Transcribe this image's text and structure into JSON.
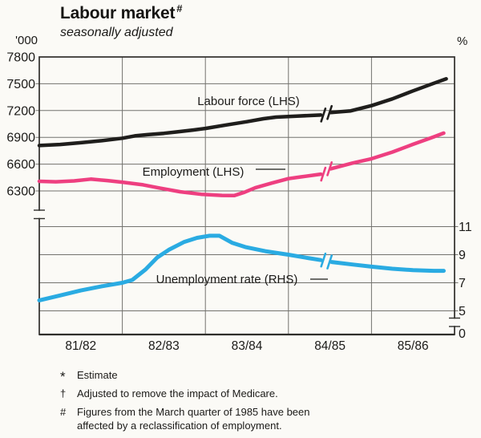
{
  "header": {
    "title": "Labour market",
    "title_note": "#",
    "subtitle": "seasonally adjusted",
    "left_axis_unit": "'000",
    "right_axis_unit": "%"
  },
  "colors": {
    "labour_force": "#1f1e1c",
    "employment": "#ee3f80",
    "unemployment": "#2aabe2",
    "grid": "#73726e",
    "border": "#2f2e2b",
    "text": "#1b1a18",
    "background": "#fbfaf6"
  },
  "chart_data": {
    "type": "line",
    "title": "Labour market",
    "subtitle": "seasonally adjusted",
    "x_categories": [
      "81/82",
      "82/83",
      "83/84",
      "84/85",
      "85/86"
    ],
    "left_axis": {
      "unit": "'000",
      "ticks": [
        7800,
        7500,
        7200,
        6900,
        6600,
        6300
      ],
      "note": "scale break below 6300"
    },
    "right_axis": {
      "unit": "%",
      "ticks": [
        11,
        9,
        7,
        5,
        0
      ],
      "note": "scale break between 5 and 0"
    },
    "series": [
      {
        "name": "Labour force (LHS)",
        "axis": "LHS",
        "color": "#1f1e1c",
        "break_gap": [
          3.41,
          3.5
        ],
        "points": [
          [
            0,
            6808
          ],
          [
            0.25,
            6820
          ],
          [
            0.5,
            6840
          ],
          [
            0.75,
            6862
          ],
          [
            1,
            6890
          ],
          [
            1.15,
            6916
          ],
          [
            1.3,
            6930
          ],
          [
            1.5,
            6945
          ],
          [
            1.65,
            6960
          ],
          [
            1.85,
            6982
          ],
          [
            2,
            7000
          ],
          [
            2.25,
            7038
          ],
          [
            2.5,
            7075
          ],
          [
            2.7,
            7108
          ],
          [
            2.85,
            7126
          ],
          [
            3.1,
            7138
          ],
          [
            3.39,
            7150
          ],
          [
            3.51,
            7178
          ],
          [
            3.75,
            7196
          ],
          [
            4,
            7255
          ],
          [
            4.25,
            7330
          ],
          [
            4.5,
            7420
          ],
          [
            4.75,
            7505
          ],
          [
            4.9,
            7555
          ]
        ]
      },
      {
        "name": "Employment (LHS)",
        "axis": "LHS",
        "color": "#ee3f80",
        "break_gap": [
          3.41,
          3.5
        ],
        "points": [
          [
            0,
            6408
          ],
          [
            0.2,
            6402
          ],
          [
            0.42,
            6412
          ],
          [
            0.62,
            6432
          ],
          [
            0.82,
            6416
          ],
          [
            1,
            6398
          ],
          [
            1.25,
            6368
          ],
          [
            1.45,
            6332
          ],
          [
            1.7,
            6290
          ],
          [
            1.95,
            6262
          ],
          [
            2.2,
            6250
          ],
          [
            2.35,
            6249
          ],
          [
            2.47,
            6285
          ],
          [
            2.6,
            6335
          ],
          [
            2.8,
            6388
          ],
          [
            3,
            6437
          ],
          [
            3.15,
            6457
          ],
          [
            3.39,
            6488
          ],
          [
            3.51,
            6548
          ],
          [
            3.77,
            6612
          ],
          [
            4,
            6660
          ],
          [
            4.25,
            6735
          ],
          [
            4.5,
            6822
          ],
          [
            4.75,
            6905
          ],
          [
            4.87,
            6948
          ]
        ]
      },
      {
        "name": "Unemployment rate (RHS)",
        "axis": "RHS",
        "color": "#2aabe2",
        "break_gap": [
          3.41,
          3.5
        ],
        "points": [
          [
            0,
            5.75
          ],
          [
            0.25,
            6.1
          ],
          [
            0.5,
            6.45
          ],
          [
            0.75,
            6.75
          ],
          [
            1,
            7
          ],
          [
            1.12,
            7.2
          ],
          [
            1.28,
            7.95
          ],
          [
            1.42,
            8.8
          ],
          [
            1.56,
            9.35
          ],
          [
            1.74,
            9.9
          ],
          [
            1.9,
            10.2
          ],
          [
            2.05,
            10.35
          ],
          [
            2.17,
            10.35
          ],
          [
            2.32,
            9.85
          ],
          [
            2.48,
            9.55
          ],
          [
            2.72,
            9.25
          ],
          [
            3,
            9
          ],
          [
            3.25,
            8.75
          ],
          [
            3.39,
            8.62
          ],
          [
            3.52,
            8.48
          ],
          [
            3.78,
            8.3
          ],
          [
            4,
            8.15
          ],
          [
            4.25,
            8
          ],
          [
            4.5,
            7.9
          ],
          [
            4.75,
            7.85
          ],
          [
            4.87,
            7.85
          ]
        ]
      }
    ]
  },
  "footnotes": [
    {
      "symbol": "*",
      "text": "Estimate"
    },
    {
      "symbol": "†",
      "text": "Adjusted to remove the impact of Medicare."
    },
    {
      "symbol": "#",
      "text": "Figures from the March quarter of 1985 have been affected by a reclassification of employment."
    }
  ]
}
